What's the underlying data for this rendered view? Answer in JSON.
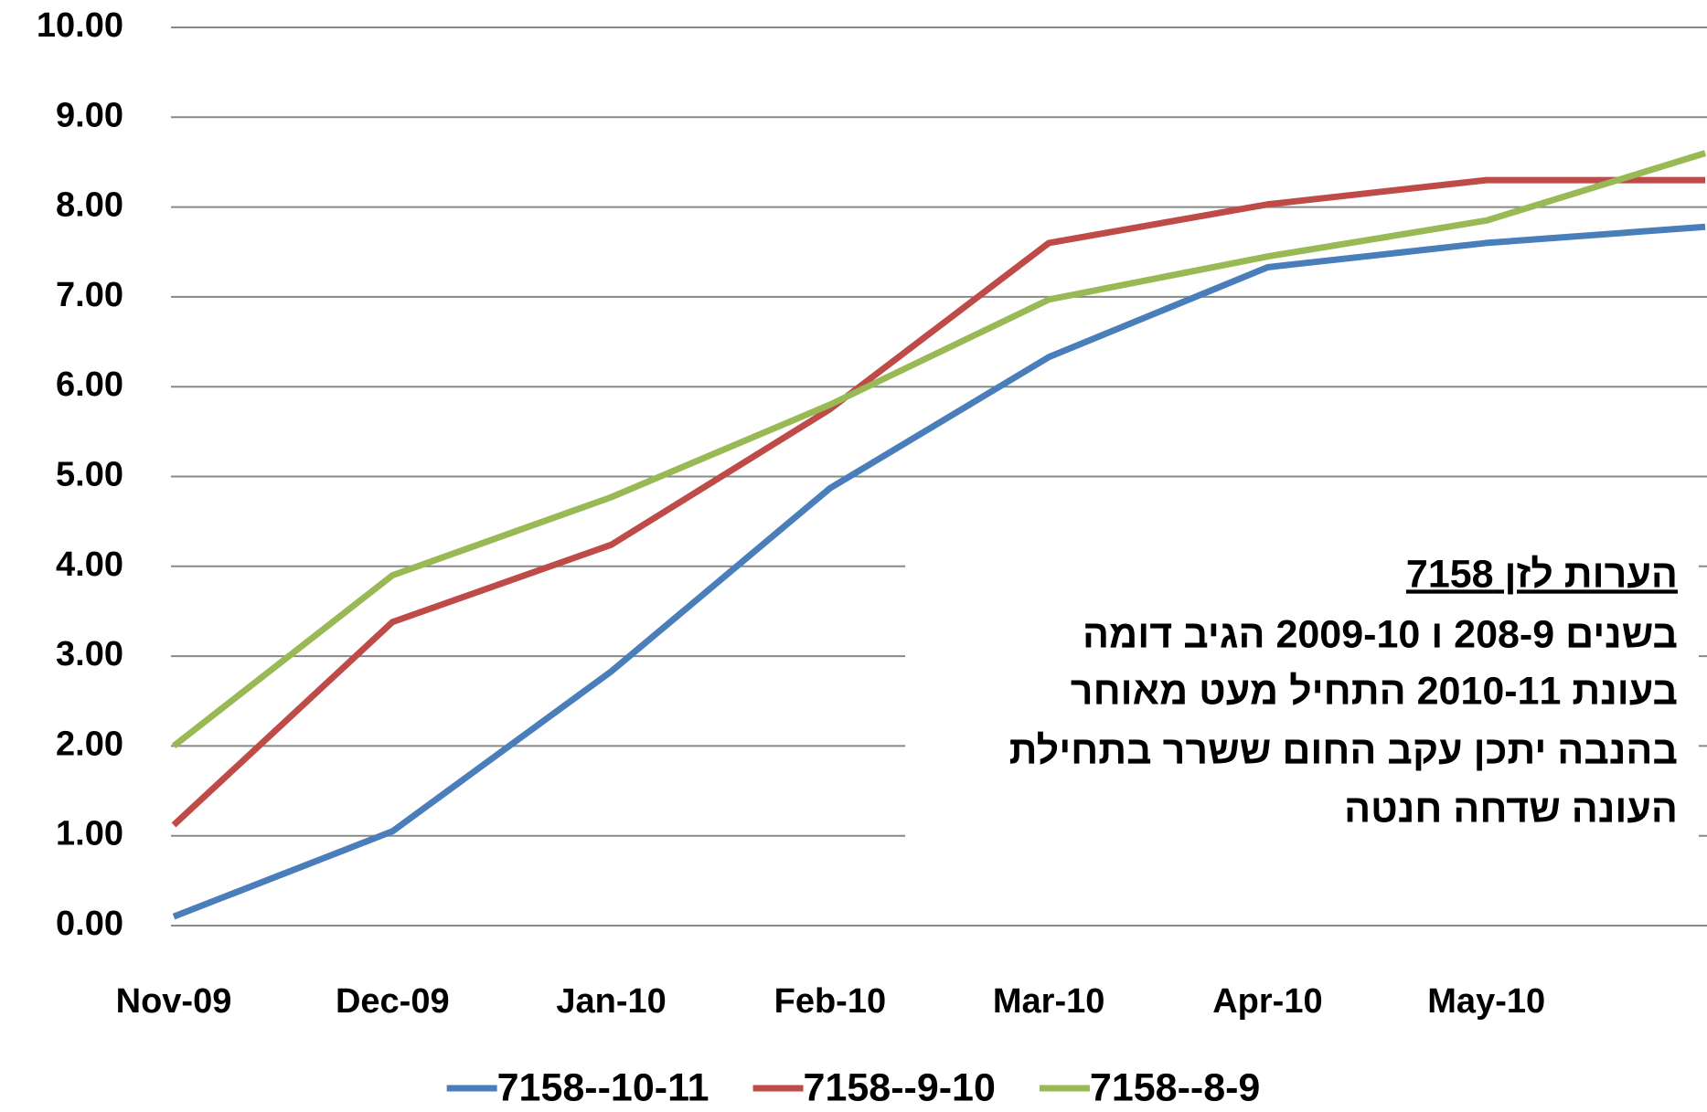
{
  "chart_data": {
    "type": "line",
    "categories": [
      "Nov-09",
      "Dec-09",
      "Jan-10",
      "Feb-10",
      "Mar-10",
      "Apr-10",
      "May-10",
      null
    ],
    "series": [
      {
        "name": "7158--10-11",
        "color": "#4a7ebb",
        "values": [
          0.1,
          1.05,
          2.83,
          4.87,
          6.33,
          7.33,
          7.6,
          7.78
        ]
      },
      {
        "name": "7158--9-10",
        "color": "#be4b48",
        "values": [
          1.12,
          3.38,
          4.24,
          5.75,
          7.6,
          8.03,
          8.3,
          8.3
        ]
      },
      {
        "name": "7158--8-9",
        "color": "#98b954",
        "values": [
          2.0,
          3.9,
          4.77,
          5.8,
          6.97,
          7.45,
          7.85,
          8.6
        ]
      }
    ],
    "ylim": [
      0,
      10
    ],
    "yticks": [
      {
        "value": 0,
        "label": "0.00"
      },
      {
        "value": 1,
        "label": "1.00"
      },
      {
        "value": 2,
        "label": "2.00"
      },
      {
        "value": 3,
        "label": "3.00"
      },
      {
        "value": 4,
        "label": "4.00"
      },
      {
        "value": 5,
        "label": "5.00"
      },
      {
        "value": 6,
        "label": "6.00"
      },
      {
        "value": 7,
        "label": "7.00"
      },
      {
        "value": 8,
        "label": "8.00"
      },
      {
        "value": 9,
        "label": "9.00"
      },
      {
        "value": 10,
        "label": "10.00"
      }
    ],
    "grid": true,
    "legend": "bottom",
    "annotation": {
      "title": "הערות לזן 7158",
      "lines": [
        "בשנים 208-9 ו 2009-10 הגיב דומה",
        "בעונת 2010-11 התחיל מעט מאוחר",
        "בהנבה יתכן עקב החום ששרר בתחילת",
        "העונה שדחה חנטה"
      ]
    }
  }
}
